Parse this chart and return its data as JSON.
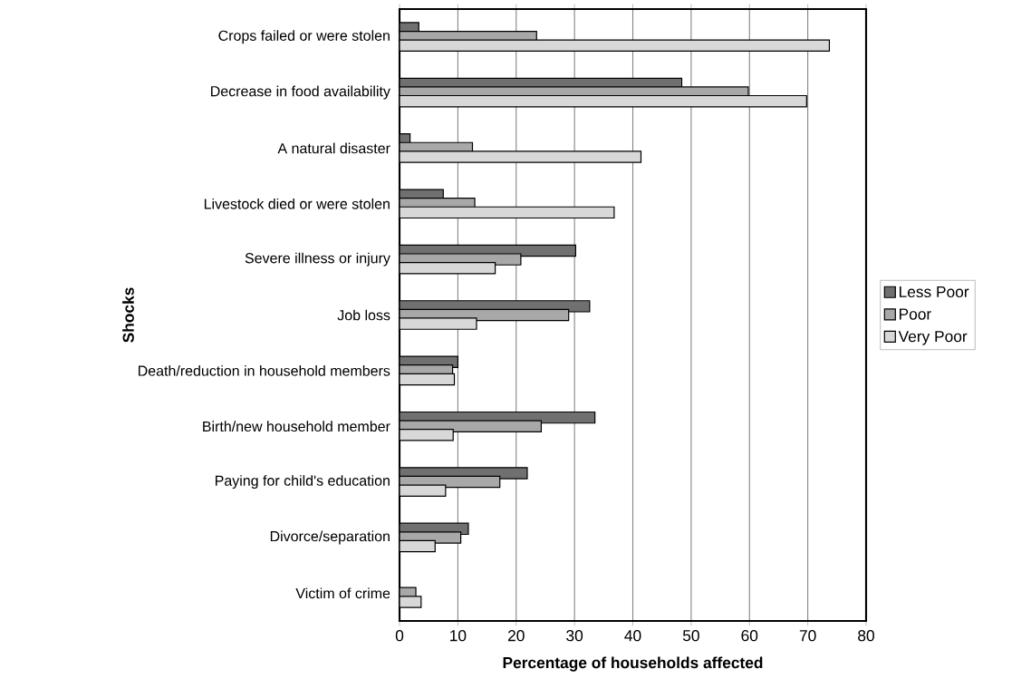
{
  "chart_data": {
    "type": "bar",
    "orientation": "horizontal",
    "xlabel": "Percentage of households affected",
    "ylabel": "Shocks",
    "categories": [
      "Crops failed or were stolen",
      "Decrease in food availability",
      "A natural disaster",
      "Livestock died or were stolen",
      "Severe illness or injury",
      "Job loss",
      "Death/reduction in household members",
      "Birth/new household member",
      "Paying for child's education",
      "Divorce/separation",
      "Victim of crime"
    ],
    "series": [
      {
        "name": "Less Poor",
        "color": "#707070",
        "values": [
          3.3,
          48.4,
          1.8,
          7.5,
          30.2,
          32.6,
          10.0,
          33.5,
          21.9,
          11.8,
          null
        ]
      },
      {
        "name": "Poor",
        "color": "#a8a8a8",
        "values": [
          23.5,
          59.8,
          12.5,
          12.9,
          20.8,
          29.0,
          9.1,
          24.3,
          17.2,
          10.5,
          2.8
        ]
      },
      {
        "name": "Very Poor",
        "color": "#d8d8d8",
        "values": [
          73.7,
          69.8,
          41.4,
          36.8,
          16.4,
          13.2,
          9.4,
          9.2,
          7.9,
          6.1,
          3.7
        ]
      }
    ],
    "xlim": [
      0,
      80
    ],
    "xticks": [
      0,
      10,
      20,
      30,
      40,
      50,
      60,
      70,
      80
    ],
    "grid": "x",
    "legend": "right"
  }
}
